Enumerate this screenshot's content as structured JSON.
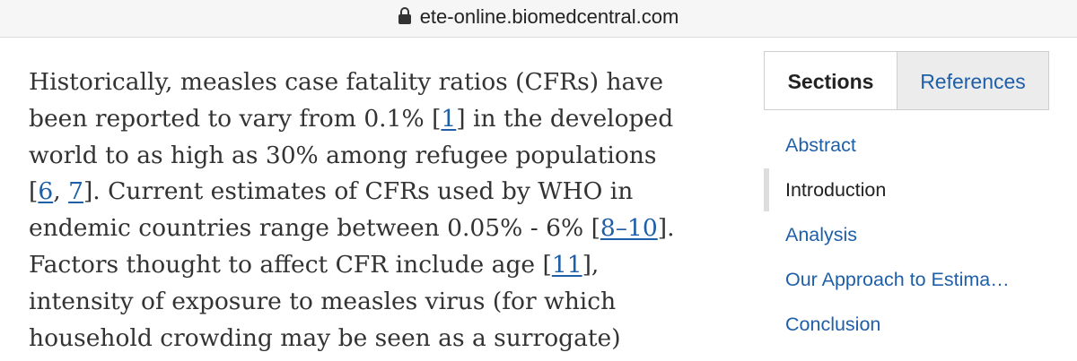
{
  "browser": {
    "url": "ete-online.biomedcentral.com",
    "lock_icon": "lock-icon"
  },
  "article": {
    "lines": [
      [
        {
          "text": "Historically, measles case fatality ratios (CFRs) have",
          "link": false
        }
      ],
      [
        {
          "text": "been reported to vary from 0.1% [",
          "link": false
        },
        {
          "text": "1",
          "link": true
        },
        {
          "text": "] in the developed",
          "link": false
        }
      ],
      [
        {
          "text": "world to as high as 30% among refugee populations",
          "link": false
        }
      ],
      [
        {
          "text": "[",
          "link": false
        },
        {
          "text": "6",
          "link": true
        },
        {
          "text": ", ",
          "link": false
        },
        {
          "text": "7",
          "link": true
        },
        {
          "text": "]. Current estimates of CFRs used by WHO in",
          "link": false
        }
      ],
      [
        {
          "text": "endemic countries range between 0.05% - 6% [",
          "link": false
        },
        {
          "text": "8–10",
          "link": true
        },
        {
          "text": "].",
          "link": false
        }
      ],
      [
        {
          "text": "Factors thought to affect CFR include age [",
          "link": false
        },
        {
          "text": "11",
          "link": true
        },
        {
          "text": "],",
          "link": false
        }
      ],
      [
        {
          "text": "intensity of exposure to measles virus (for which",
          "link": false
        }
      ],
      [
        {
          "text": "household crowding may be seen as a surrogate)",
          "link": false
        }
      ]
    ]
  },
  "sidebar": {
    "tabs": [
      {
        "label": "Sections",
        "active": true
      },
      {
        "label": "References",
        "active": false
      }
    ],
    "nav": [
      {
        "label": "Abstract",
        "active": false
      },
      {
        "label": "Introduction",
        "active": true
      },
      {
        "label": "Analysis",
        "active": false
      },
      {
        "label": "Our Approach to Estima…",
        "active": false
      },
      {
        "label": "Conclusion",
        "active": false
      }
    ]
  },
  "colors": {
    "link": "#1f5fa8",
    "body_text": "#333333",
    "tab_inactive_bg": "#ececec",
    "active_indicator": "#dddddd"
  }
}
